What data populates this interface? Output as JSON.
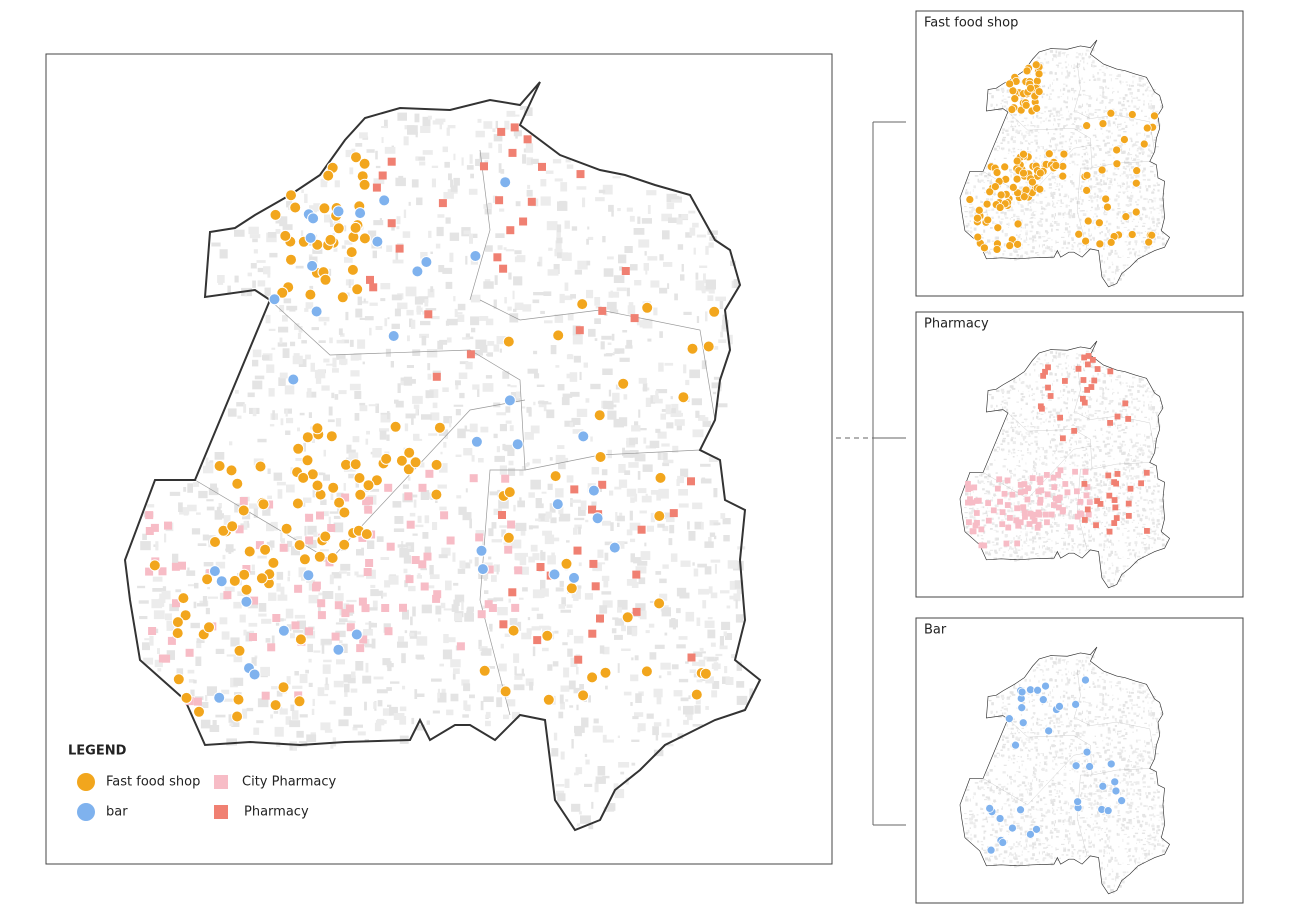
{
  "legend": {
    "title": "LEGEND",
    "items": [
      {
        "label": "Fast food shop",
        "color": "#f2a61d",
        "shape": "circle"
      },
      {
        "label": "bar",
        "color": "#7fb2ee",
        "shape": "circle"
      },
      {
        "label": "City Pharmacy",
        "color": "#f7bcc6",
        "shape": "square"
      },
      {
        "label": "Pharmacy",
        "color": "#f08072",
        "shape": "square"
      }
    ]
  },
  "panels": [
    {
      "title": "Fast food shop"
    },
    {
      "title": "Pharmacy"
    },
    {
      "title": "Bar"
    }
  ]
}
